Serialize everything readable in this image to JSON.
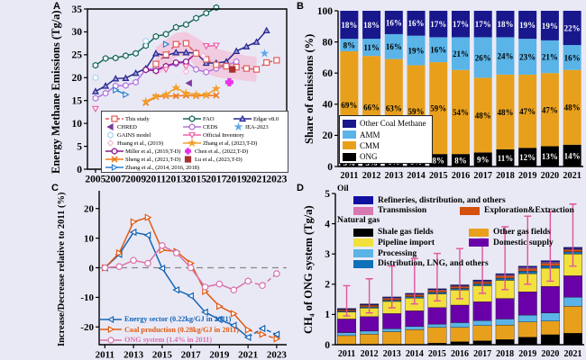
{
  "figure": {
    "background": "#e9e9f6"
  },
  "panel_labels": {
    "a": "A",
    "b": "B",
    "c": "C",
    "d": "D"
  },
  "chart_data": [
    {
      "id": "A",
      "type": "line",
      "ylabel": "Energy Methane Emissions (Tg/a)",
      "xlim": [
        2004.2,
        2024.0
      ],
      "ylim": [
        0,
        35
      ],
      "xticks": [
        2005,
        2007,
        2009,
        2011,
        2013,
        2015,
        2017,
        2019,
        2021,
        2023
      ],
      "yticks": [
        0,
        5,
        10,
        15,
        20,
        25,
        30,
        35
      ],
      "band": {
        "x": [
          2011,
          2012,
          2013,
          2014,
          2015,
          2016,
          2017,
          2018,
          2019,
          2020,
          2021
        ],
        "hi": [
          26.6,
          28.3,
          29.8,
          30.0,
          28.8,
          27.4,
          26.4,
          25.8,
          25.3,
          24.8,
          24.6
        ],
        "lo": [
          20.3,
          21.9,
          24.5,
          24.8,
          22.3,
          20.9,
          20.1,
          19.8,
          19.6,
          19.3,
          19.1
        ],
        "color": "#f6bcd4"
      },
      "legend_rows": [
        [
          8,
          2,
          1
        ],
        [
          9,
          0,
          14
        ],
        [
          10,
          7
        ],
        [
          11,
          5
        ],
        [
          3,
          12
        ],
        [
          4,
          13
        ],
        [
          6
        ]
      ],
      "series": [
        {
          "name": "CEDS",
          "color": "#b474dc",
          "marker": "hexagon",
          "x": [
            2005,
            2006,
            2007,
            2008,
            2009,
            2010,
            2011,
            2012,
            2013,
            2014,
            2015,
            2016,
            2017,
            2018,
            2019
          ],
          "y": [
            15.5,
            16.6,
            18.2,
            18.3,
            19.0,
            21.8,
            22.0,
            22.4,
            23.0,
            23.4,
            21.8,
            21.2,
            22.0,
            22.6,
            23.5
          ]
        },
        {
          "name": "Edgar v8.0",
          "color": "#28288f",
          "marker": "tri-up",
          "fill": "#9a9ad8",
          "x": [
            2005,
            2006,
            2007,
            2008,
            2009,
            2010,
            2011,
            2012,
            2013,
            2014,
            2015,
            2016,
            2017,
            2018,
            2019,
            2020,
            2021,
            2022
          ],
          "y": [
            17.0,
            18.2,
            19.8,
            19.9,
            21.0,
            22.0,
            25.3,
            24.8,
            25.5,
            25.5,
            25.4,
            23.2,
            23.2,
            23.5,
            25.8,
            26.8,
            27.8,
            30.3
          ]
        },
        {
          "name": "FAO",
          "color": "#17695a",
          "marker": "hexagon",
          "x": [
            2005,
            2006,
            2007,
            2008,
            2009,
            2010,
            2011,
            2012,
            2013,
            2014,
            2015,
            2016,
            2017
          ],
          "y": [
            22.7,
            24.2,
            24.3,
            24.8,
            25.3,
            27.0,
            29.0,
            29.5,
            31.0,
            31.6,
            33.0,
            34.1,
            35.3
          ]
        },
        {
          "name": "Miller et al., (2019,T-D)",
          "color": "#8c1a8c",
          "marker": "hexagon",
          "x": [
            2010,
            2011,
            2012,
            2013,
            2014,
            2015
          ],
          "y": [
            21.7,
            21.5,
            22.5,
            23.3,
            23.5,
            25.3
          ]
        },
        {
          "name": "Sheng et al., (2021,T-D)",
          "color": "#f07818",
          "marker": "x",
          "x": [
            2010,
            2011,
            2012,
            2013,
            2014,
            2015,
            2016,
            2017
          ],
          "y": [
            14.5,
            15.8,
            16.0,
            16.0,
            16.1,
            16.0,
            16.1,
            16.1
          ]
        },
        {
          "name": "Zhang et al, (2023,T-D)",
          "color": "#f0a028",
          "marker": "star",
          "filled": true,
          "x": [
            2010,
            2011,
            2012,
            2013,
            2014,
            2015,
            2016,
            2017
          ],
          "y": [
            14.8,
            15.9,
            16.3,
            17.8,
            16.6,
            16.3,
            16.2,
            17.6
          ]
        },
        {
          "name": "Zhang et al., (2014, 2016, 2018)",
          "color": "#2f80d0",
          "marker": "tri-right",
          "x": [
            2007,
            2008
          ],
          "y": [
            17.3,
            16.3
          ],
          "pts": [
            [
              2012,
              27.3
            ]
          ]
        },
        {
          "name": "Official Inventory",
          "color": "#f060a8",
          "marker": "tri-down",
          "x": [
            2016,
            2017
          ],
          "y": [
            26.9,
            27.0
          ],
          "pts": [
            [
              2005,
              13.2
            ],
            [
              2012,
              21.8
            ],
            [
              2014,
              22.4
            ]
          ]
        },
        {
          "name": "This study",
          "color": "#e15a5a",
          "marker": "square",
          "dash": "5,3",
          "x": [
            2011,
            2012,
            2013,
            2014,
            2015,
            2016,
            2017,
            2018,
            2019,
            2020,
            2021,
            2022,
            2023
          ],
          "y": [
            23.0,
            25.0,
            27.3,
            27.5,
            25.3,
            24.0,
            22.8,
            22.5,
            22.3,
            22.0,
            21.8,
            23.3,
            23.8
          ]
        },
        {
          "name": "CHRED",
          "color": "#7a3ba0",
          "marker": "tri-left",
          "filled": true,
          "pts": [
            [
              2014.3,
              18.8
            ]
          ]
        },
        {
          "name": "GAINS model",
          "color": "#aad4f0",
          "marker": "hexagon",
          "pts": [
            [
              2005,
              20.0
            ],
            [
              2010,
              28.0
            ]
          ]
        },
        {
          "name": "Huang et al., (2019)",
          "color": "#f6b8d4",
          "marker": "diamond",
          "pts": [
            [
              2014,
              21.3
            ],
            [
              2015.7,
              24.8
            ]
          ]
        },
        {
          "name": "Chen et al., (2022,T-D)",
          "color": "#e831e8",
          "marker": "plus",
          "filled": true,
          "msize": 4,
          "pts": [
            [
              2018.3,
              19.0
            ]
          ]
        },
        {
          "name": "Lu et al., (2023,T-D)",
          "color": "#a83030",
          "marker": "square",
          "filled": true,
          "pts": [
            [
              2018.6,
              21.8
            ]
          ]
        },
        {
          "name": "IEA-2023",
          "color": "#5aa9e6",
          "marker": "star",
          "filled": true,
          "pts": [
            [
              2021.8,
              25.3
            ]
          ]
        }
      ]
    },
    {
      "id": "B",
      "type": "stacked-bar",
      "ylabel": "Share of emissions (%)",
      "categories": [
        "2011",
        "2012",
        "2013",
        "2014",
        "2015",
        "2016",
        "2017",
        "2018",
        "2019",
        "2020",
        "2021"
      ],
      "ylim": [
        0,
        100
      ],
      "yticks": [
        0,
        20,
        40,
        60,
        80,
        100
      ],
      "show_labels": true,
      "labels_suffix": "%",
      "series": [
        {
          "name": "ONG",
          "color": "#000000",
          "label_color": "#ffffff",
          "values": [
            5,
            5,
            6,
            6,
            8,
            8,
            9,
            11,
            12,
            13,
            14
          ]
        },
        {
          "name": "CMM",
          "color": "#e8a01c",
          "label_color": "#000000",
          "values": [
            69,
            66,
            63,
            59,
            59,
            54,
            48,
            48,
            47,
            47,
            48
          ]
        },
        {
          "name": "AMM",
          "color": "#5ab4e8",
          "label_color": "#000000",
          "values": [
            8,
            11,
            16,
            19,
            16,
            21,
            26,
            24,
            23,
            21,
            16
          ]
        },
        {
          "name": "Other Coal Methane",
          "color": "#18188c",
          "label_color": "#ffffff",
          "values": [
            18,
            18,
            16,
            16,
            17,
            17,
            17,
            18,
            19,
            19,
            22
          ]
        }
      ]
    },
    {
      "id": "C",
      "type": "line",
      "ylabel": "Increase/Decrease relative to 2011 (%)",
      "xlim": [
        2010.6,
        2023.7
      ],
      "ylim": [
        -26,
        26
      ],
      "xticks": [
        2011,
        2013,
        2015,
        2017,
        2019,
        2021,
        2023
      ],
      "yticks": [
        -20,
        -10,
        0,
        10,
        20
      ],
      "zero_line": true,
      "series": [
        {
          "name": "Energy sector (0.22kg/GJ in 2011)",
          "color": "#1464b4",
          "marker": "tri-left",
          "dash_from": 2021,
          "x": [
            2011,
            2012,
            2013,
            2014,
            2015,
            2016,
            2017,
            2018,
            2019,
            2020,
            2021,
            2022,
            2023
          ],
          "y": [
            0,
            4.5,
            12,
            11,
            -0.2,
            -7.5,
            -9.5,
            -15,
            -17.5,
            -19.5,
            -23.5,
            -20.5,
            -22.5
          ]
        },
        {
          "name": "Coal production (0.28kg/GJ in 2011)",
          "color": "#e05a10",
          "marker": "tri-right",
          "dash_from": 2021,
          "x": [
            2011,
            2012,
            2013,
            2014,
            2015,
            2016,
            2017,
            2018,
            2019,
            2020,
            2021,
            2022,
            2023
          ],
          "y": [
            0,
            5,
            15.5,
            17,
            6,
            5.5,
            1.5,
            -8,
            -13,
            -15.5,
            -21,
            -22.5,
            -24
          ]
        },
        {
          "name": "ONG system (1.4% in 2011)",
          "color": "#d873ac",
          "marker": "circle",
          "dash_from": 2021,
          "x": [
            2011,
            2012,
            2013,
            2014,
            2015,
            2016,
            2017,
            2018,
            2019,
            2020,
            2021,
            2022,
            2023
          ],
          "y": [
            0,
            0.4,
            2.5,
            1.5,
            7.5,
            5,
            0,
            -6.5,
            -5.5,
            -7.5,
            -4.5,
            -6,
            -2
          ]
        }
      ]
    },
    {
      "id": "D",
      "type": "stacked-bar",
      "ylabel": "CH₄ of ONG system (Tg/a)",
      "categories": [
        "2011",
        "2012",
        "2013",
        "2014",
        "2015",
        "2016",
        "2017",
        "2018",
        "2019",
        "2020",
        "2021"
      ],
      "ylim": [
        0,
        5
      ],
      "yticks": [
        0,
        1,
        2,
        3,
        4,
        5
      ],
      "legend_headers": {
        "oil": "Oil",
        "natural_gas": "Natural gas"
      },
      "series": [
        {
          "name": "Shale gas fields",
          "color": "#000000",
          "values": [
            0,
            0,
            0,
            0,
            0.05,
            0.1,
            0.13,
            0.17,
            0.25,
            0.33,
            0.38
          ]
        },
        {
          "name": "Other gas fields",
          "color": "#e8a01c",
          "values": [
            0.3,
            0.35,
            0.43,
            0.5,
            0.52,
            0.47,
            0.5,
            0.48,
            0.5,
            0.45,
            0.89
          ]
        },
        {
          "name": "Processing",
          "color": "#5ab4e8",
          "values": [
            0.1,
            0.1,
            0.1,
            0.1,
            0.11,
            0.16,
            0.17,
            0.2,
            0.23,
            0.27,
            0.3
          ]
        },
        {
          "name": "Domestic supply",
          "color": "#6a00a8",
          "values": [
            0.45,
            0.48,
            0.5,
            0.52,
            0.55,
            0.58,
            0.62,
            0.68,
            0.77,
            0.88,
            0.71
          ]
        },
        {
          "name": "Pipeline import",
          "color": "#f2e03c",
          "values": [
            0.23,
            0.28,
            0.4,
            0.42,
            0.45,
            0.5,
            0.53,
            0.6,
            0.6,
            0.6,
            0.72
          ]
        },
        {
          "name": "Distribution, LNG, and others",
          "color": "#1070b8",
          "values": [
            0.03,
            0.04,
            0.04,
            0.05,
            0.05,
            0.05,
            0.06,
            0.07,
            0.08,
            0.08,
            0.07
          ]
        },
        {
          "name": "Exploration&Extraction",
          "color": "#d4500c",
          "values": [
            0.04,
            0.05,
            0.05,
            0.05,
            0.06,
            0.06,
            0.06,
            0.07,
            0.08,
            0.08,
            0.07
          ]
        },
        {
          "name": "Transmission",
          "color": "#d878b0",
          "values": [
            0.02,
            0.02,
            0.03,
            0.03,
            0.03,
            0.03,
            0.03,
            0.04,
            0.04,
            0.04,
            0.03
          ]
        },
        {
          "name": "Refineries, distribution, and others",
          "color": "#1010a0",
          "values": [
            0.03,
            0.03,
            0.03,
            0.03,
            0.03,
            0.03,
            0.04,
            0.04,
            0.05,
            0.05,
            0.05
          ]
        }
      ],
      "error_bars": {
        "color": "#e0549a",
        "low": [
          0.95,
          1.05,
          1.22,
          1.35,
          1.45,
          1.52,
          1.7,
          1.82,
          2.0,
          2.1,
          2.6
        ],
        "high": [
          1.95,
          2.18,
          2.6,
          2.85,
          3.02,
          3.18,
          3.5,
          3.9,
          4.25,
          4.4,
          4.65
        ]
      }
    }
  ]
}
